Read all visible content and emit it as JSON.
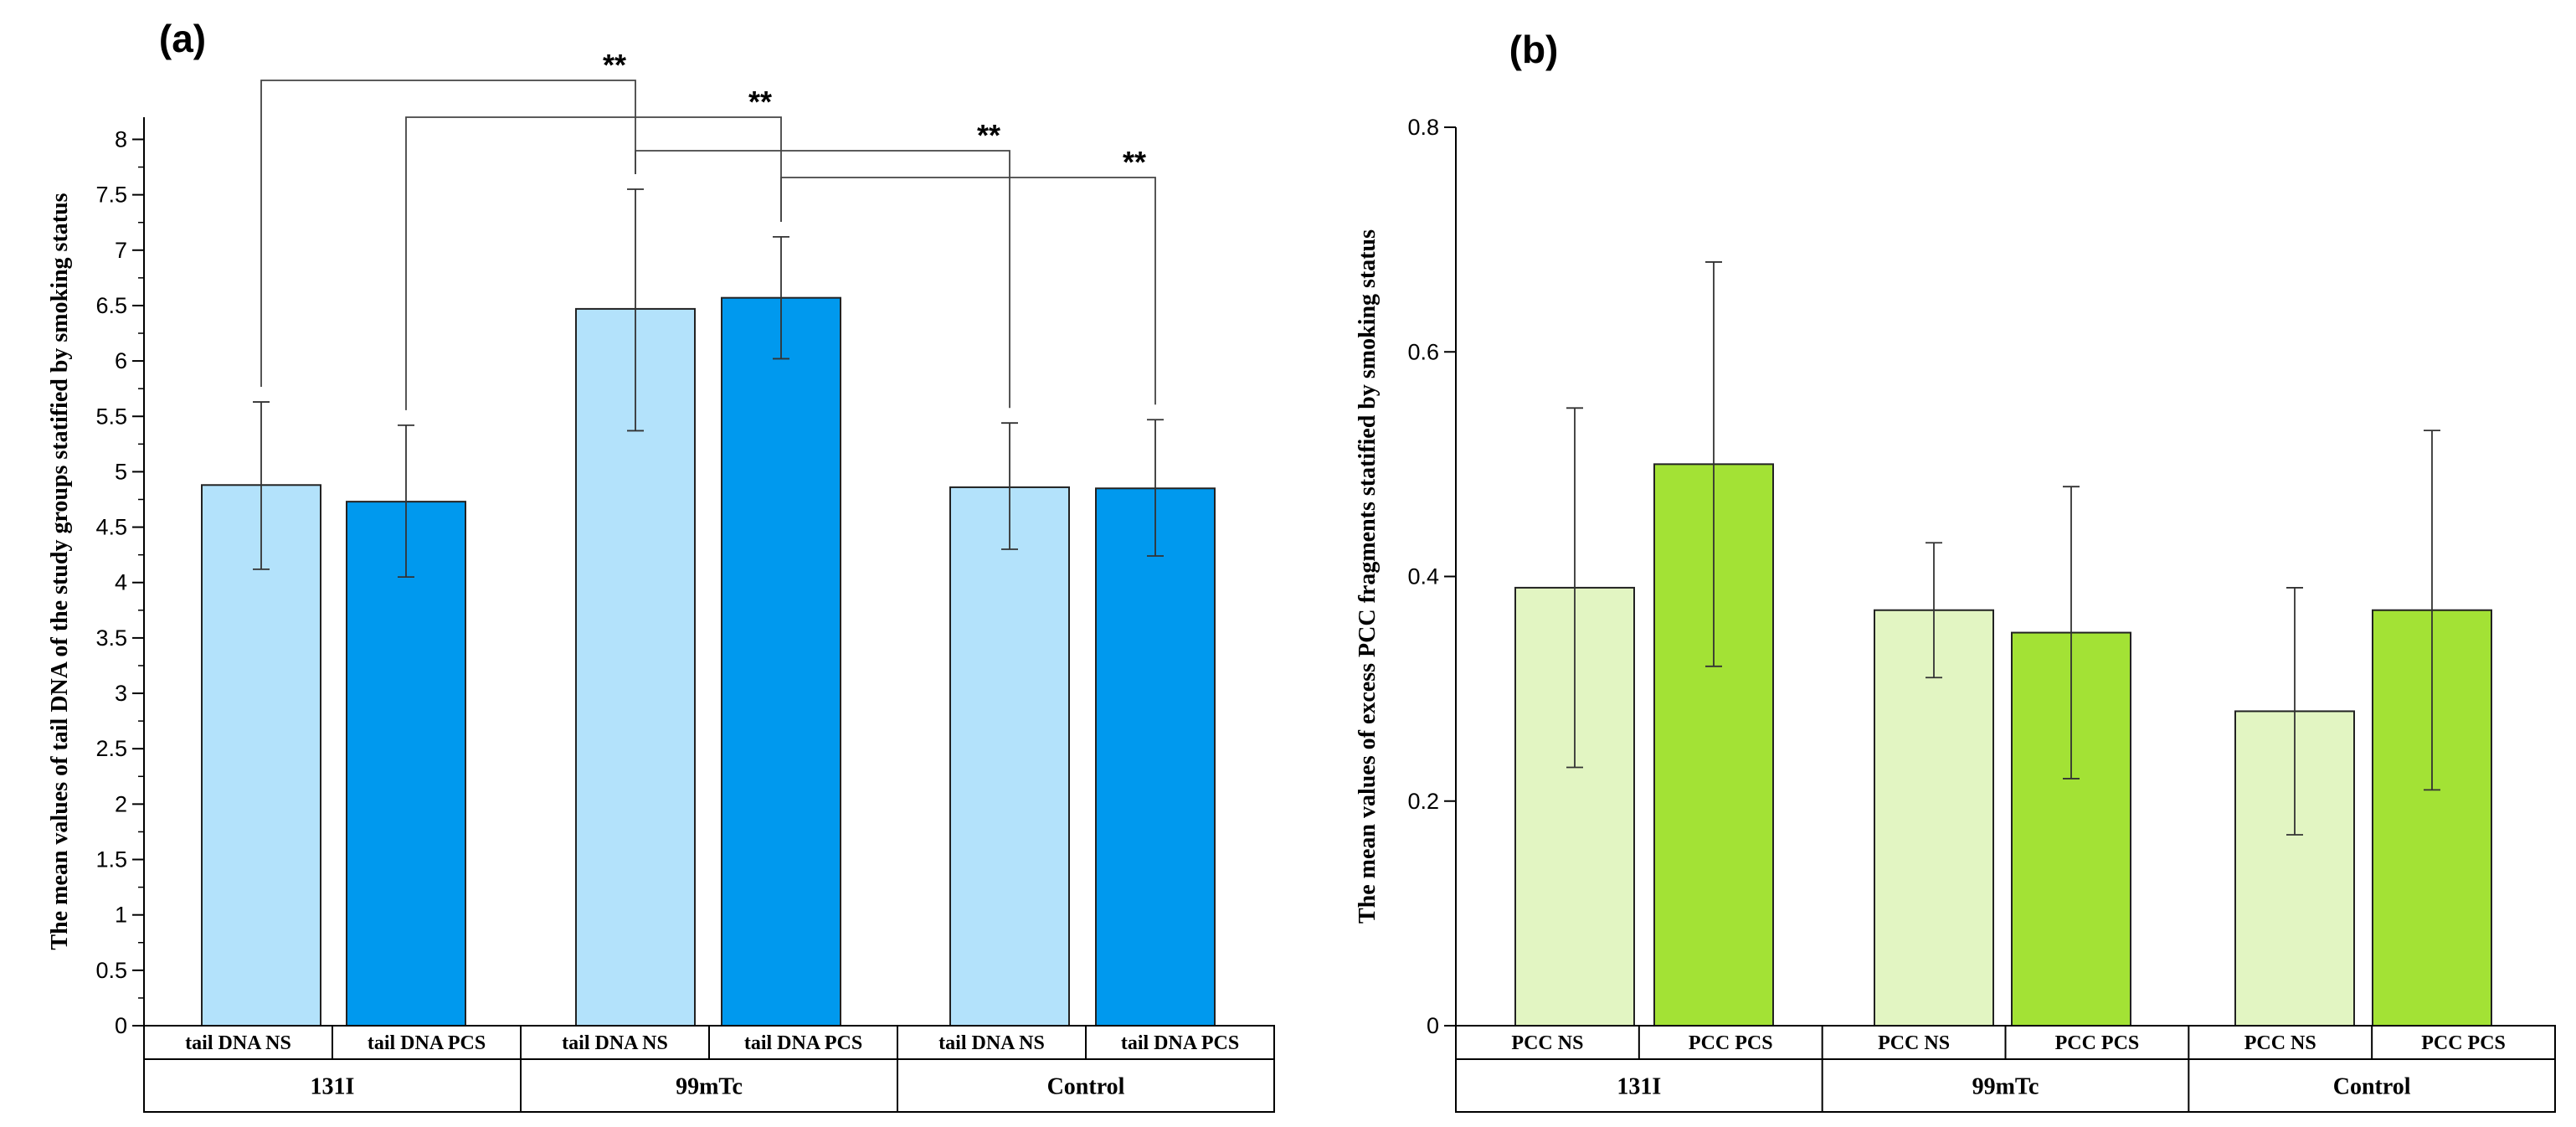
{
  "colors": {
    "a_ns": "#b3e2fb",
    "a_pcs": "#0099ee",
    "b_ns": "#e2f5c2",
    "b_pcs": "#a3e235",
    "axis": "#000000",
    "err": "#333333"
  },
  "chart_data": [
    {
      "panel_label": "(a)",
      "type": "bar",
      "ylabel": "The mean values of tail DNA of the study groups statified by smoking status",
      "ylim": [
        0,
        8.2
      ],
      "yticks": [
        0,
        0.5,
        1,
        1.5,
        2,
        2.5,
        3,
        3.5,
        4,
        4.5,
        5,
        5.5,
        6,
        6.5,
        7,
        7.5,
        8
      ],
      "ytick_labels": [
        "0",
        "0.5",
        "1",
        "1.5",
        "2",
        "2.5",
        "3",
        "3.5",
        "4",
        "4.5",
        "5",
        "5.5",
        "6",
        "6.5",
        "7",
        "7.5",
        "8"
      ],
      "groups": [
        "131I",
        "99mTc",
        "Control"
      ],
      "categories": [
        "tail DNA NS",
        "tail DNA PCS",
        "tail DNA NS",
        "tail DNA PCS",
        "tail DNA NS",
        "tail DNA PCS"
      ],
      "values": [
        4.88,
        4.73,
        6.47,
        6.57,
        4.86,
        4.85
      ],
      "err_low": [
        4.12,
        4.05,
        5.37,
        6.02,
        4.3,
        4.24
      ],
      "err_high": [
        5.63,
        5.42,
        7.55,
        7.12,
        5.44,
        5.47
      ],
      "significance": [
        {
          "from": 0,
          "to": 2,
          "label": "**"
        },
        {
          "from": 1,
          "to": 3,
          "label": "**"
        },
        {
          "from": 2,
          "to": 4,
          "label": "**"
        },
        {
          "from": 3,
          "to": 5,
          "label": "**"
        }
      ]
    },
    {
      "panel_label": "(b)",
      "type": "bar",
      "ylabel": "The mean values of excess PCC fragments statified by smoking status",
      "ylim": [
        0,
        0.8
      ],
      "yticks": [
        0,
        0.2,
        0.4,
        0.6,
        0.8
      ],
      "ytick_labels": [
        "0",
        "0.2",
        "0.4",
        "0.6",
        "0.8"
      ],
      "groups": [
        "131I",
        "99mTc",
        "Control"
      ],
      "categories": [
        "PCC NS",
        "PCC PCS",
        "PCC NS",
        "PCC PCS",
        "PCC NS",
        "PCC PCS"
      ],
      "values": [
        0.39,
        0.5,
        0.37,
        0.35,
        0.28,
        0.37
      ],
      "err_low": [
        0.23,
        0.32,
        0.31,
        0.22,
        0.17,
        0.21
      ],
      "err_high": [
        0.55,
        0.68,
        0.43,
        0.48,
        0.39,
        0.53
      ]
    }
  ]
}
